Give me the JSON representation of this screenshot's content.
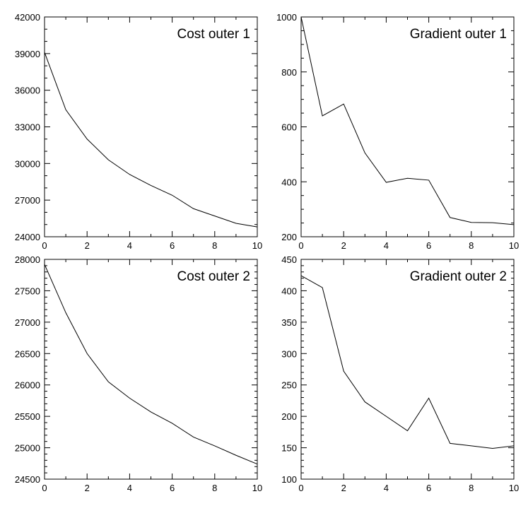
{
  "chart_data": [
    {
      "type": "line",
      "title": "Cost outer 1",
      "xlabel": "",
      "ylabel": "",
      "xlim": [
        0,
        10
      ],
      "ylim": [
        24000,
        42000
      ],
      "x_ticks": [
        0,
        2,
        4,
        6,
        8,
        10
      ],
      "y_ticks": [
        24000,
        27000,
        30000,
        33000,
        36000,
        39000,
        42000
      ],
      "x_minor_step": 1,
      "y_minor_step": 1000,
      "grid": false,
      "series": [
        {
          "x": [
            0,
            1,
            2,
            3,
            4,
            5,
            6,
            7,
            8,
            9,
            10
          ],
          "values": [
            39100,
            34400,
            32000,
            30300,
            29100,
            28200,
            27400,
            26300,
            25700,
            25100,
            24800
          ]
        }
      ]
    },
    {
      "type": "line",
      "title": "Gradient outer 1",
      "xlabel": "",
      "ylabel": "",
      "xlim": [
        0,
        10
      ],
      "ylim": [
        200,
        1000
      ],
      "x_ticks": [
        0,
        2,
        4,
        6,
        8,
        10
      ],
      "y_ticks": [
        200,
        400,
        600,
        800,
        1000
      ],
      "x_minor_step": 1,
      "y_minor_step": 50,
      "grid": false,
      "series": [
        {
          "x": [
            0,
            1,
            2,
            3,
            4,
            5,
            6,
            7,
            8,
            9,
            10
          ],
          "values": [
            1000,
            640,
            683,
            505,
            398,
            413,
            406,
            270,
            252,
            251,
            244
          ]
        }
      ]
    },
    {
      "type": "line",
      "title": "Cost outer 2",
      "xlabel": "",
      "ylabel": "",
      "xlim": [
        0,
        10
      ],
      "ylim": [
        24500,
        28000
      ],
      "x_ticks": [
        0,
        2,
        4,
        6,
        8,
        10
      ],
      "y_ticks": [
        24500,
        25000,
        25500,
        26000,
        26500,
        27000,
        27500,
        28000
      ],
      "x_minor_step": 1,
      "y_minor_step": 100,
      "grid": false,
      "series": [
        {
          "x": [
            0,
            1,
            2,
            3,
            4,
            5,
            6,
            7,
            8,
            9,
            10
          ],
          "values": [
            27920,
            27150,
            26500,
            26050,
            25790,
            25570,
            25390,
            25170,
            25030,
            24880,
            24740
          ]
        }
      ]
    },
    {
      "type": "line",
      "title": "Gradient outer 2",
      "xlabel": "",
      "ylabel": "",
      "xlim": [
        0,
        10
      ],
      "ylim": [
        100,
        450
      ],
      "x_ticks": [
        0,
        2,
        4,
        6,
        8,
        10
      ],
      "y_ticks": [
        100,
        150,
        200,
        250,
        300,
        350,
        400,
        450
      ],
      "x_minor_step": 1,
      "y_minor_step": 10,
      "grid": false,
      "series": [
        {
          "x": [
            0,
            1,
            2,
            3,
            4,
            5,
            6,
            7,
            8,
            9,
            10
          ],
          "values": [
            424,
            405,
            272,
            223,
            200,
            177,
            229,
            157,
            153,
            149,
            153
          ]
        }
      ]
    }
  ]
}
